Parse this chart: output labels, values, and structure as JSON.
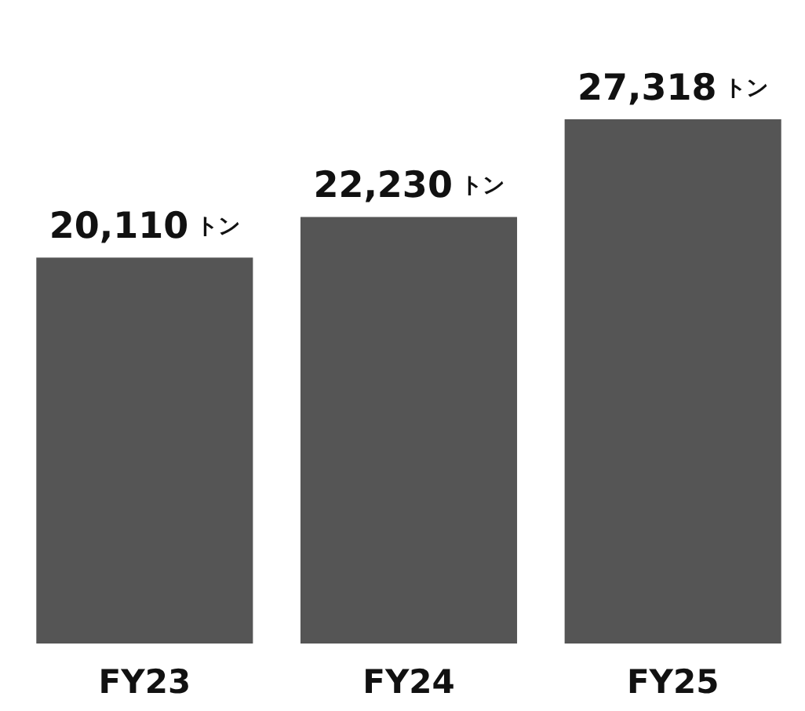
{
  "chart_data": {
    "type": "bar",
    "categories": [
      "FY23",
      "FY24",
      "FY25"
    ],
    "values": [
      20110,
      22230,
      27318
    ],
    "value_labels": [
      "20,110 トン",
      "22,230 トン",
      "27,318 トン"
    ],
    "color": "#555555"
  }
}
